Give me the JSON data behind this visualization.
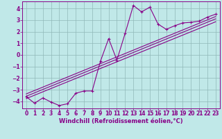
{
  "xlabel": "Windchill (Refroidissement éolien,°C)",
  "bg_color": "#c0e8e8",
  "line_color": "#880088",
  "grid_color": "#90b8b8",
  "xlim": [
    -0.5,
    23.5
  ],
  "ylim": [
    -4.6,
    4.6
  ],
  "xticks": [
    0,
    1,
    2,
    3,
    4,
    5,
    6,
    7,
    8,
    9,
    10,
    11,
    12,
    13,
    14,
    15,
    16,
    17,
    18,
    19,
    20,
    21,
    22,
    23
  ],
  "yticks": [
    -4,
    -3,
    -2,
    -1,
    0,
    1,
    2,
    3,
    4
  ],
  "data_x": [
    0,
    1,
    2,
    3,
    4,
    5,
    6,
    7,
    8,
    9,
    10,
    11,
    12,
    13,
    14,
    15,
    16,
    17,
    18,
    19,
    20,
    21,
    22,
    23
  ],
  "data_y": [
    -3.6,
    -4.15,
    -3.7,
    -4.05,
    -4.35,
    -4.2,
    -3.3,
    -3.1,
    -3.1,
    -0.55,
    1.4,
    -0.45,
    1.85,
    4.25,
    3.7,
    4.1,
    2.65,
    2.2,
    2.5,
    2.75,
    2.8,
    2.9,
    3.25,
    3.5
  ],
  "ref_lines": [
    {
      "x0": 0,
      "y0": -3.55,
      "x1": 23,
      "y1": 3.1
    },
    {
      "x0": 0,
      "y0": -3.35,
      "x1": 23,
      "y1": 3.3
    },
    {
      "x0": 0,
      "y0": -3.75,
      "x1": 23,
      "y1": 2.85
    }
  ],
  "xlabel_fontsize": 6,
  "tick_fontsize": 5.5
}
